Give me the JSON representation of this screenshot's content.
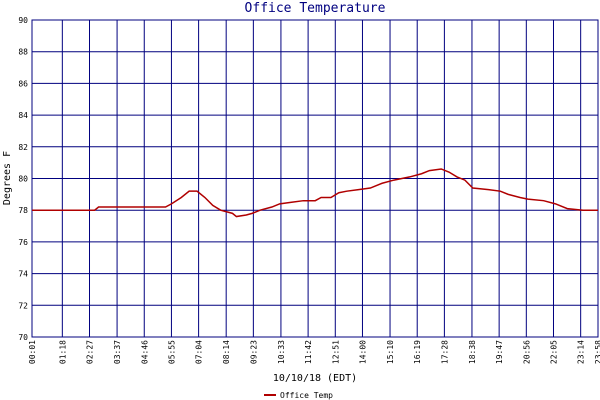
{
  "chart_data": {
    "type": "line",
    "title": "Office Temperature",
    "ylabel": "Degrees F",
    "xlabel": "10/10/18 (EDT)",
    "x": [
      1,
      160,
      170,
      340,
      355,
      380,
      400,
      420,
      440,
      460,
      480,
      510,
      520,
      545,
      560,
      580,
      610,
      630,
      660,
      690,
      720,
      735,
      760,
      780,
      800,
      830,
      860,
      890,
      920,
      960,
      990,
      1010,
      1040,
      1060,
      1080,
      1100,
      1120,
      1160,
      1190,
      1210,
      1240,
      1260,
      1300,
      1330,
      1360,
      1400,
      1438
    ],
    "series": [
      {
        "name": "Office Temp",
        "color": "#b00000",
        "values": [
          78.0,
          78.0,
          78.2,
          78.2,
          78.4,
          78.8,
          79.2,
          79.2,
          78.8,
          78.3,
          78.0,
          77.8,
          77.6,
          77.7,
          77.8,
          78.0,
          78.2,
          78.4,
          78.5,
          78.6,
          78.6,
          78.8,
          78.8,
          79.1,
          79.2,
          79.3,
          79.4,
          79.7,
          79.9,
          80.1,
          80.3,
          80.5,
          80.6,
          80.4,
          80.1,
          79.9,
          79.4,
          79.3,
          79.2,
          79.0,
          78.8,
          78.7,
          78.6,
          78.4,
          78.1,
          78.0,
          78.0
        ]
      }
    ],
    "xlim": [
      1,
      1438
    ],
    "xticks": [
      {
        "value": 1,
        "label": "00:01"
      },
      {
        "value": 78,
        "label": "01:18"
      },
      {
        "value": 147,
        "label": "02:27"
      },
      {
        "value": 217,
        "label": "03:37"
      },
      {
        "value": 286,
        "label": "04:46"
      },
      {
        "value": 355,
        "label": "05:55"
      },
      {
        "value": 424,
        "label": "07:04"
      },
      {
        "value": 494,
        "label": "08:14"
      },
      {
        "value": 563,
        "label": "09:23"
      },
      {
        "value": 633,
        "label": "10:33"
      },
      {
        "value": 702,
        "label": "11:42"
      },
      {
        "value": 771,
        "label": "12:51"
      },
      {
        "value": 840,
        "label": "14:00"
      },
      {
        "value": 910,
        "label": "15:10"
      },
      {
        "value": 979,
        "label": "16:19"
      },
      {
        "value": 1048,
        "label": "17:28"
      },
      {
        "value": 1118,
        "label": "18:38"
      },
      {
        "value": 1187,
        "label": "19:47"
      },
      {
        "value": 1256,
        "label": "20:56"
      },
      {
        "value": 1325,
        "label": "22:05"
      },
      {
        "value": 1394,
        "label": "23:14"
      },
      {
        "value": 1438,
        "label": "23:58"
      }
    ],
    "ylim": [
      70,
      90
    ],
    "yticks": [
      70,
      72,
      74,
      76,
      78,
      80,
      82,
      84,
      86,
      88,
      90
    ],
    "grid": true,
    "grid_color": "#00007f"
  }
}
